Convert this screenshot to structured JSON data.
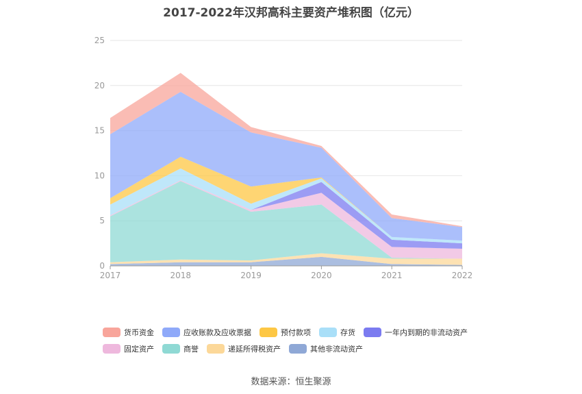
{
  "chart_data": {
    "type": "area",
    "stacked": true,
    "title": "2017-2022年汉邦高科主要资产堆积图（亿元）",
    "source": "数据来源：恒生聚源",
    "x": [
      "2017",
      "2018",
      "2019",
      "2020",
      "2021",
      "2022"
    ],
    "ylim": [
      0,
      25
    ],
    "yticks": [
      0,
      5,
      10,
      15,
      20,
      25
    ],
    "grid": true,
    "legend_position": "bottom",
    "series": [
      {
        "name": "其他非流动资产",
        "color": "#8fa8d6",
        "values": [
          0.2,
          0.4,
          0.4,
          1.0,
          0.2,
          0.1
        ]
      },
      {
        "name": "递延所得税资产",
        "color": "#fcd899",
        "values": [
          0.2,
          0.3,
          0.2,
          0.4,
          0.6,
          0.7
        ]
      },
      {
        "name": "商誉",
        "color": "#8fd9d4",
        "values": [
          5.1,
          8.7,
          5.4,
          5.4,
          0.1,
          0.0
        ]
      },
      {
        "name": "固定资产",
        "color": "#eeb8dd",
        "values": [
          0.1,
          0.1,
          0.2,
          1.3,
          1.2,
          1.1
        ]
      },
      {
        "name": "一年内到期的非流动资产",
        "color": "#7b7bf0",
        "values": [
          0.0,
          0.0,
          0.0,
          1.2,
          0.8,
          0.6
        ]
      },
      {
        "name": "存货",
        "color": "#a9dff8",
        "values": [
          1.2,
          1.3,
          0.7,
          0.4,
          0.3,
          0.3
        ]
      },
      {
        "name": "预付款项",
        "color": "#fdc744",
        "values": [
          0.7,
          1.3,
          1.9,
          0.1,
          0.0,
          0.0
        ]
      },
      {
        "name": "应收账款及应收票据",
        "color": "#8fa9f9",
        "values": [
          7.1,
          7.2,
          6.0,
          3.3,
          2.1,
          1.5
        ]
      },
      {
        "name": "货币资金",
        "color": "#f8a59b",
        "values": [
          1.8,
          2.1,
          0.6,
          0.2,
          0.4,
          0.1
        ]
      }
    ],
    "legend_order": [
      "货币资金",
      "应收账款及应收票据",
      "预付款项",
      "存货",
      "一年内到期的非流动资产",
      "固定资产",
      "商誉",
      "递延所得税资产",
      "其他非流动资产"
    ]
  }
}
